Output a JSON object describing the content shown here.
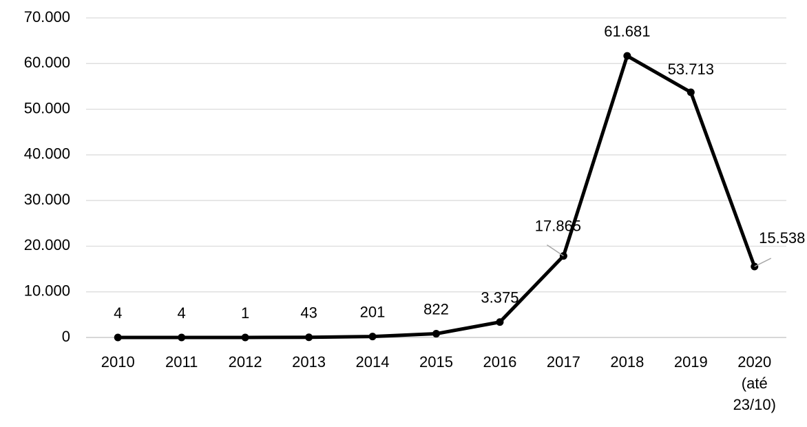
{
  "chart_data": {
    "type": "line",
    "categories": [
      "2010",
      "2011",
      "2012",
      "2013",
      "2014",
      "2015",
      "2016",
      "2017",
      "2018",
      "2019",
      "2020 (até 23/10)"
    ],
    "series": [
      {
        "color": "#000000",
        "values": [
          4,
          4,
          1,
          43,
          201,
          822,
          3375,
          17865,
          61681,
          53713,
          15538
        ],
        "value_labels": [
          "4",
          "4",
          "1",
          "43",
          "201",
          "822",
          "3.375",
          "17.865",
          "61.681",
          "53.713",
          "15.538"
        ]
      }
    ],
    "ylim": [
      0,
      70000
    ],
    "yticks": [
      0,
      {
        "value": 10000,
        "label": "10.000"
      },
      {
        "value": 20000,
        "label": "20.000"
      },
      {
        "value": 30000,
        "label": "30.000"
      },
      {
        "value": 40000,
        "label": "40.000"
      },
      {
        "value": 50000,
        "label": "50.000"
      },
      {
        "value": 60000,
        "label": "60.000"
      },
      {
        "value": 70000,
        "label": "70.000"
      }
    ],
    "grid": true
  }
}
